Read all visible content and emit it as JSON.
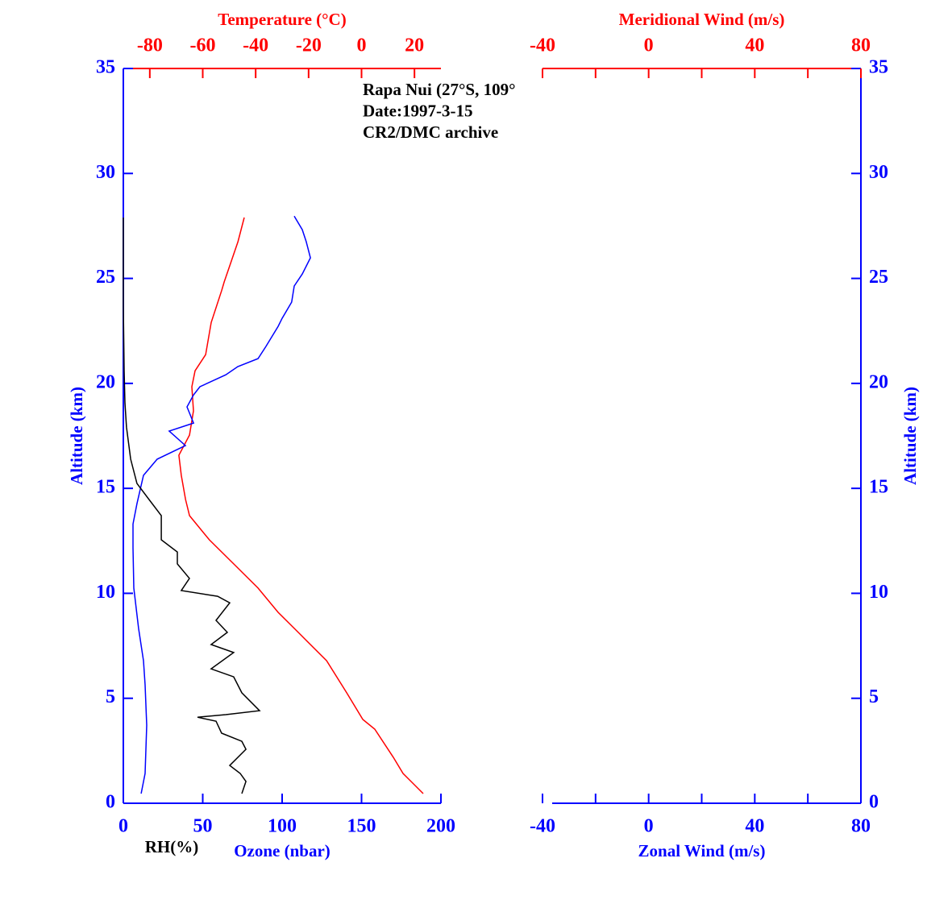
{
  "chart_data": [
    {
      "type": "line",
      "ylabel": "Altitude (km)",
      "ylim": [
        0,
        35
      ],
      "yticks": [
        0,
        5,
        10,
        15,
        20,
        25,
        30,
        35
      ],
      "xlim": [
        0,
        200
      ],
      "xticks": [
        0,
        50,
        100,
        150,
        200
      ],
      "x2lim": [
        -90,
        30
      ],
      "x2ticks": [
        -80,
        -60,
        -40,
        -20,
        0,
        20
      ],
      "annotations": [
        "Rapa Nui (27°S, 109°",
        "Date:1997-3-15",
        "CR2/DMC archive"
      ],
      "series": [
        {
          "name": "Temperature (°C)",
          "color": "#ff0000",
          "axis": "x2",
          "values": [
            23.3,
            15.7,
            12.0,
            5.0,
            0.5,
            -5.6,
            -13.2,
            -23.9,
            -31.5,
            -39.1,
            -48.3,
            -57.5,
            -65.0,
            -66.5,
            -68.1,
            -69.0,
            -65.0,
            -63.5,
            -64.1,
            -62.9,
            -58.9,
            -56.8,
            -52.8,
            -51.9,
            -49.8,
            -46.7,
            -44.3
          ],
          "altitude": [
            0.46,
            1.42,
            2.19,
            3.53,
            3.99,
            5.26,
            6.79,
            8.14,
            9.09,
            10.25,
            11.4,
            12.55,
            13.7,
            14.47,
            15.62,
            16.58,
            17.54,
            18.69,
            19.84,
            20.6,
            21.37,
            22.9,
            24.44,
            24.83,
            25.6,
            26.75,
            27.9
          ]
        },
        {
          "name": "Ozone (nbar)",
          "color": "#0000ff",
          "axis": "x",
          "values": [
            11.2,
            13.7,
            14.7,
            13.7,
            12.7,
            9.6,
            6.6,
            6.1,
            6.1,
            8.6,
            12.7,
            21.3,
            39.1,
            28.9,
            44.2,
            40.1,
            44.2,
            48.2,
            64.5,
            72.1,
            84.8,
            89.8,
            97.5,
            100,
            106,
            107.6,
            112.7,
            117.8,
            115.2,
            112.7,
            107.6
          ],
          "altitude": [
            0.46,
            1.42,
            3.72,
            5.64,
            6.79,
            8.33,
            10.25,
            12.16,
            13.3,
            14.27,
            15.62,
            16.39,
            17.04,
            17.73,
            18.11,
            18.88,
            19.45,
            19.84,
            20.41,
            20.8,
            21.18,
            21.76,
            22.72,
            23.1,
            23.87,
            24.64,
            25.21,
            25.98,
            26.75,
            27.32,
            27.97
          ]
        },
        {
          "name": "RH(%)",
          "color": "#000000",
          "axis": "x",
          "values": [
            74.6,
            77.2,
            73.6,
            67.0,
            77.2,
            74.6,
            61.9,
            58.4,
            46.7,
            64.5,
            85.8,
            74.6,
            69.5,
            55.3,
            69.5,
            55.3,
            65.5,
            58.4,
            67.0,
            59.4,
            36.5,
            41.6,
            34.0,
            34.0,
            23.9,
            23.9,
            16.2,
            8.6,
            4.6,
            2.0,
            1.0,
            0.5,
            0,
            0
          ],
          "altitude": [
            0.46,
            1.04,
            1.42,
            1.8,
            2.57,
            2.95,
            3.34,
            3.91,
            4.1,
            4.22,
            4.41,
            5.26,
            6.02,
            6.4,
            7.18,
            7.56,
            8.14,
            8.71,
            9.55,
            9.86,
            10.13,
            10.71,
            11.4,
            11.97,
            12.55,
            13.7,
            14.47,
            15.23,
            16.39,
            17.92,
            19.07,
            20.6,
            23.68,
            27.9
          ]
        }
      ]
    },
    {
      "type": "line",
      "ylabel": "Altitude (km)",
      "ylim": [
        0,
        35
      ],
      "yticks": [
        0,
        5,
        10,
        15,
        20,
        25,
        30,
        35
      ],
      "xlabel": "Zonal Wind (m/s)",
      "xlim": [
        -40,
        80
      ],
      "xticks": [
        -40,
        0,
        40,
        80
      ],
      "xminorticks": [
        -20,
        20,
        60
      ],
      "x2label": "Meridional Wind (m/s)",
      "x2lim": [
        -40,
        80
      ],
      "x2ticks": [
        -40,
        0,
        40,
        80
      ],
      "x2minorticks": [
        -20,
        20,
        60
      ],
      "series": []
    }
  ]
}
